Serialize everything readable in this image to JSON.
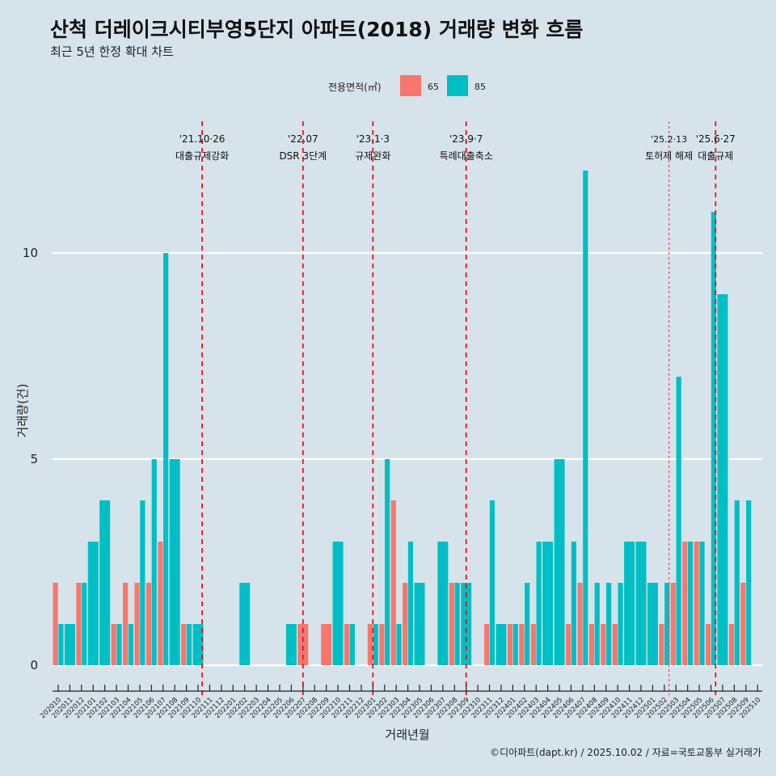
{
  "chart_data": {
    "type": "bar",
    "title": "산척 더레이크시티부영5단지 아파트(2018) 거래량 변화 흐름",
    "subtitle": "최근 5년 한정 확대 차트",
    "xlabel": "거래년월",
    "ylabel": "거래량(건)",
    "caption": "©디아파트(dapt.kr) / 2025.10.02 / 자료=국토교통부 실거래가",
    "ylim": [
      0,
      12.5
    ],
    "yticks": [
      0,
      5,
      10
    ],
    "grid": true,
    "legend": {
      "title": "전용면적(㎡)",
      "placement": "top-center",
      "entries": [
        {
          "name": "65",
          "color": "#f8766d"
        },
        {
          "name": "85",
          "color": "#00bfc4"
        }
      ]
    },
    "categories": [
      "202010",
      "202011",
      "202012",
      "202101",
      "202102",
      "202103",
      "202104",
      "202105",
      "202106",
      "202107",
      "202108",
      "202109",
      "202110",
      "202111",
      "202112",
      "202201",
      "202202",
      "202203",
      "202204",
      "202205",
      "202206",
      "202207",
      "202208",
      "202209",
      "202210",
      "202211",
      "202212",
      "202301",
      "202302",
      "202303",
      "202304",
      "202305",
      "202306",
      "202307",
      "202308",
      "202309",
      "202310",
      "202311",
      "202312",
      "202401",
      "202402",
      "202403",
      "202404",
      "202405",
      "202406",
      "202407",
      "202408",
      "202409",
      "202410",
      "202411",
      "202412",
      "202501",
      "202502",
      "202503",
      "202504",
      "202505",
      "202506",
      "202507",
      "202508",
      "202509",
      "202510"
    ],
    "series": [
      {
        "name": "65",
        "color": "#f8766d",
        "values": [
          2,
          0,
          2,
          0,
          0,
          1,
          2,
          2,
          2,
          3,
          0,
          1,
          0,
          0,
          0,
          0,
          0,
          0,
          0,
          0,
          0,
          1,
          0,
          1,
          0,
          1,
          0,
          1,
          1,
          4,
          2,
          0,
          0,
          0,
          2,
          0,
          0,
          1,
          0,
          1,
          1,
          1,
          0,
          0,
          1,
          2,
          1,
          1,
          1,
          0,
          0,
          0,
          1,
          2,
          3,
          3,
          1,
          0,
          1,
          2,
          0
        ]
      },
      {
        "name": "85",
        "color": "#00bfc4",
        "values": [
          1,
          1,
          2,
          3,
          4,
          1,
          1,
          4,
          5,
          10,
          5,
          1,
          1,
          0,
          0,
          0,
          2,
          0,
          0,
          0,
          1,
          0,
          0,
          0,
          3,
          1,
          0,
          1,
          5,
          1,
          3,
          2,
          0,
          3,
          2,
          2,
          0,
          4,
          1,
          1,
          2,
          3,
          3,
          5,
          3,
          12,
          2,
          2,
          2,
          3,
          3,
          2,
          2,
          7,
          3,
          3,
          11,
          9,
          4,
          4,
          0
        ]
      }
    ],
    "annotations": [
      {
        "date_label": "'21.10·26",
        "event": "대출규제강화",
        "x_month_index": 12.35,
        "style": "dashed"
      },
      {
        "date_label": "'22.07",
        "event": "DSR 3단계",
        "x_month_index": 21.0,
        "style": "dashed"
      },
      {
        "date_label": "'23.1·3",
        "event": "규제완화",
        "x_month_index": 27.0,
        "style": "dashed"
      },
      {
        "date_label": "'23.9·7",
        "event": "특례대출축소",
        "x_month_index": 35.0,
        "style": "dashed"
      },
      {
        "date_label": "'25.2·13",
        "event": "토허제 해제",
        "x_month_index": 52.4,
        "style": "dotted"
      },
      {
        "date_label": "'25.6·27",
        "event": "대출규제",
        "x_month_index": 56.4,
        "style": "dashed"
      }
    ]
  }
}
